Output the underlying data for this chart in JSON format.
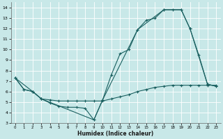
{
  "xlabel": "Humidex (Indice chaleur)",
  "bg_color": "#c8e8e8",
  "line_color": "#1a6060",
  "grid_color": "#ffffff",
  "xlim": [
    -0.5,
    23.5
  ],
  "ylim": [
    3,
    14.5
  ],
  "line1": {
    "x": [
      0,
      1,
      2,
      3,
      4,
      5,
      6,
      7,
      8,
      9,
      10,
      11,
      12,
      13,
      14,
      15,
      16,
      17,
      18,
      19,
      20,
      21,
      22,
      23
    ],
    "y": [
      7.3,
      6.2,
      6.0,
      5.3,
      4.9,
      4.6,
      4.5,
      4.5,
      4.4,
      3.3,
      5.2,
      7.6,
      9.6,
      10.0,
      11.9,
      12.8,
      13.0,
      13.8,
      13.8,
      13.8,
      12.0,
      9.5,
      6.7,
      6.5
    ]
  },
  "line2": {
    "x": [
      0,
      2,
      3,
      9,
      10,
      14,
      17,
      19,
      20,
      22,
      23
    ],
    "y": [
      7.3,
      6.0,
      5.3,
      3.3,
      5.2,
      11.9,
      13.8,
      13.8,
      12.0,
      6.7,
      6.5
    ]
  },
  "line3": {
    "x": [
      0,
      1,
      2,
      3,
      4,
      5,
      6,
      7,
      8,
      9,
      10,
      11,
      12,
      13,
      14,
      15,
      16,
      17,
      18,
      19,
      20,
      21,
      22,
      23
    ],
    "y": [
      7.3,
      6.2,
      6.0,
      5.3,
      5.2,
      5.1,
      5.1,
      5.1,
      5.1,
      5.1,
      5.1,
      5.3,
      5.5,
      5.7,
      6.0,
      6.2,
      6.4,
      6.5,
      6.6,
      6.6,
      6.6,
      6.6,
      6.6,
      6.6
    ]
  },
  "xticks": [
    0,
    1,
    2,
    3,
    4,
    5,
    6,
    7,
    8,
    9,
    10,
    11,
    12,
    13,
    14,
    15,
    16,
    17,
    18,
    19,
    20,
    21,
    22,
    23
  ],
  "yticks": [
    3,
    4,
    5,
    6,
    7,
    8,
    9,
    10,
    11,
    12,
    13,
    14
  ]
}
